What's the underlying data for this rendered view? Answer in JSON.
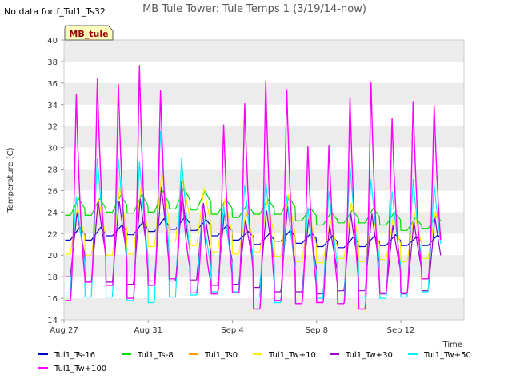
{
  "chart_data": {
    "type": "line",
    "title": "MB Tule Tower: Tule Temps 1 (3/19/14-now)",
    "no_data_note": "No data for f_Tul1_Ts32",
    "site_label": "MB_tule",
    "xlabel": "Time",
    "ylabel": "Temperature (C)",
    "ylim": [
      14,
      40
    ],
    "yticks": [
      14,
      16,
      18,
      20,
      22,
      24,
      26,
      28,
      30,
      32,
      34,
      36,
      38,
      40
    ],
    "xlim": [
      "2014-08-27",
      "2014-09-15"
    ],
    "xticks": [
      {
        "label": "Aug 27",
        "date": "2014-08-27"
      },
      {
        "label": "Aug 31",
        "date": "2014-08-31"
      },
      {
        "label": "Sep 4",
        "date": "2014-09-04"
      },
      {
        "label": "Sep 8",
        "date": "2014-09-08"
      },
      {
        "label": "Sep 12",
        "date": "2014-09-12"
      }
    ],
    "grid": "horizontal alternating bands",
    "legend_position": "bottom",
    "dates": [
      "2014-08-27",
      "2014-08-28",
      "2014-08-29",
      "2014-08-30",
      "2014-08-31",
      "2014-09-01",
      "2014-09-02",
      "2014-09-03",
      "2014-09-04",
      "2014-09-05",
      "2014-09-06",
      "2014-09-07",
      "2014-09-08",
      "2014-09-09",
      "2014-09-10",
      "2014-09-11",
      "2014-09-12",
      "2014-09-13"
    ],
    "series": [
      {
        "name": "Tul1_Ts-16",
        "color": "#0000cc",
        "mean": [
          22.0,
          22.0,
          22.3,
          22.5,
          22.8,
          23.0,
          22.8,
          22.3,
          21.8,
          21.5,
          21.8,
          21.6,
          21.3,
          21.2,
          21.3,
          21.4,
          21.3,
          21.4
        ],
        "amp": [
          0.6,
          0.6,
          0.5,
          0.6,
          0.6,
          0.6,
          0.5,
          0.5,
          0.4,
          0.5,
          0.5,
          0.5,
          0.5,
          0.5,
          0.5,
          0.5,
          0.4,
          0.5
        ],
        "peak": [
          0.75,
          0.75,
          0.75,
          0.75,
          0.75,
          0.75,
          0.75,
          0.75,
          0.75,
          0.75,
          0.75,
          0.75,
          0.75,
          0.75,
          0.75,
          0.75,
          0.75,
          0.75
        ]
      },
      {
        "name": "Tul1_Ts-8",
        "color": "#00dd00",
        "mean": [
          24.5,
          24.5,
          24.8,
          24.8,
          25.0,
          25.3,
          25.1,
          24.5,
          24.1,
          24.5,
          24.6,
          23.8,
          23.4,
          23.6,
          23.7,
          23.4,
          22.9,
          23.1
        ],
        "amp": [
          0.8,
          0.8,
          0.8,
          0.9,
          1.0,
          1.0,
          0.9,
          0.7,
          0.6,
          0.7,
          0.8,
          0.6,
          0.6,
          0.6,
          0.7,
          0.6,
          0.6,
          0.6
        ],
        "peak": [
          0.7,
          0.7,
          0.7,
          0.7,
          0.7,
          0.7,
          0.7,
          0.7,
          0.7,
          0.7,
          0.7,
          0.7,
          0.7,
          0.7,
          0.7,
          0.7,
          0.7,
          0.7
        ]
      },
      {
        "name": "Tul1_Ts0",
        "color": "#ff9900",
        "mean": [],
        "amp": [],
        "peak": []
      },
      {
        "name": "Tul1_Tw+10",
        "color": "#ffee00",
        "mean": [
          22.3,
          22.6,
          23.2,
          23.2,
          24.3,
          24.2,
          23.6,
          22.8,
          22.1,
          22.7,
          22.8,
          21.6,
          21.3,
          22.3,
          21.6,
          21.6,
          21.7,
          21.9
        ],
        "amp": [
          2.2,
          2.6,
          3.2,
          3.1,
          3.5,
          2.9,
          2.7,
          2.5,
          2.0,
          2.4,
          2.9,
          2.2,
          2.0,
          2.6,
          2.2,
          2.0,
          2.3,
          2.2
        ],
        "peak": [
          0.65,
          0.65,
          0.65,
          0.65,
          0.65,
          0.65,
          0.65,
          0.65,
          0.65,
          0.65,
          0.65,
          0.65,
          0.65,
          0.65,
          0.65,
          0.65,
          0.65,
          0.65
        ]
      },
      {
        "name": "Tul1_Tw+30",
        "color": "#9900cc",
        "mean": [
          21.0,
          21.3,
          21.3,
          21.3,
          22.0,
          21.6,
          21.3,
          20.6,
          20.3,
          20.6,
          20.6,
          20.0,
          19.6,
          20.3,
          20.3,
          19.6,
          19.8,
          20.1
        ],
        "amp": [
          3.0,
          3.8,
          3.8,
          4.0,
          4.4,
          4.0,
          3.6,
          3.4,
          3.0,
          3.6,
          4.0,
          3.4,
          3.2,
          3.6,
          3.6,
          3.2,
          3.4,
          3.4
        ],
        "peak": [
          0.62,
          0.62,
          0.62,
          0.62,
          0.62,
          0.62,
          0.62,
          0.62,
          0.62,
          0.62,
          0.62,
          0.62,
          0.62,
          0.62,
          0.62,
          0.62,
          0.62,
          0.62
        ]
      },
      {
        "name": "Tul1_Tw+50",
        "color": "#00eeff",
        "mean": [
          21.0,
          22.6,
          22.6,
          22.3,
          23.6,
          22.6,
          20.3,
          20.6,
          21.6,
          21.6,
          20.6,
          20.0,
          21.0,
          22.0,
          21.6,
          21.0,
          21.6,
          21.6
        ],
        "amp": [
          4.5,
          6.5,
          6.5,
          6.5,
          8.0,
          6.5,
          4.0,
          4.0,
          5.0,
          5.5,
          5.0,
          4.5,
          5.0,
          6.5,
          5.5,
          5.0,
          5.5,
          5.0
        ],
        "peak": [
          0.58,
          0.58,
          0.58,
          0.58,
          0.58,
          0.58,
          0.58,
          0.58,
          0.58,
          0.58,
          0.58,
          0.58,
          0.58,
          0.58,
          0.58,
          0.58,
          0.58,
          0.58
        ]
      },
      {
        "name": "Tul1_Tw+100",
        "color": "#ff00ff",
        "min": [
          15.8,
          17.5,
          17.2,
          16.0,
          17.2,
          17.8,
          16.5,
          16.4,
          16.5,
          15.0,
          15.8,
          15.5,
          15.6,
          15.5,
          15.0,
          16.5,
          16.5,
          17.8
        ],
        "max": [
          35.2,
          36.6,
          36.1,
          37.9,
          35.5,
          27.0,
          24.5,
          32.3,
          34.3,
          36.4,
          35.6,
          30.3,
          30.4,
          34.9,
          36.3,
          32.9,
          34.5,
          34.1
        ],
        "peak": [
          0.58,
          0.58,
          0.58,
          0.58,
          0.58,
          0.58,
          0.58,
          0.58,
          0.58,
          0.58,
          0.58,
          0.58,
          0.58,
          0.58,
          0.58,
          0.58,
          0.58,
          0.58
        ]
      }
    ]
  }
}
